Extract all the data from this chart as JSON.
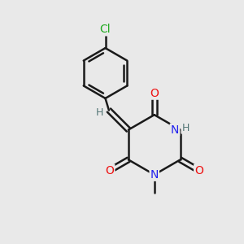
{
  "background_color": "#e9e9e9",
  "bond_color": "#1a1a1a",
  "atom_colors": {
    "O": "#ee1111",
    "N": "#2222ee",
    "Cl": "#22aa22",
    "H": "#557777",
    "C": "#1a1a1a"
  },
  "figsize": [
    3.0,
    3.0
  ],
  "dpi": 100
}
